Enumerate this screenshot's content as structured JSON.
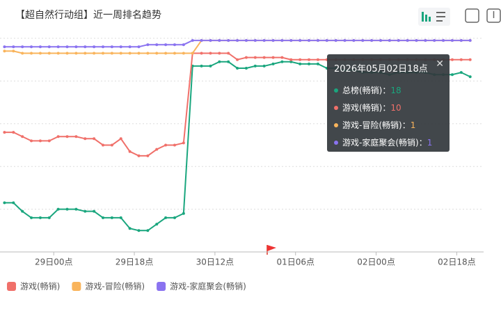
{
  "chart_data": {
    "type": "line",
    "title": "【超自然行动组】近一周排名趋势",
    "x": [
      -11,
      -9,
      -7,
      -5,
      -3,
      -1,
      1,
      3,
      5,
      7,
      9,
      11,
      13,
      15,
      17,
      19,
      21,
      23,
      25,
      27,
      29,
      31,
      33,
      35,
      37,
      39,
      41,
      43,
      45,
      47,
      49,
      51,
      53,
      55,
      57,
      59,
      61,
      63,
      65,
      67,
      69,
      71,
      73,
      75,
      77,
      79,
      81,
      83,
      85,
      87,
      89,
      91,
      93
    ],
    "xlim": [
      -12,
      96
    ],
    "xticks": [
      {
        "value": 0,
        "label": "29日00点"
      },
      {
        "value": 18,
        "label": "29日18点"
      },
      {
        "value": 36,
        "label": "30日12点"
      },
      {
        "value": 54,
        "label": "01日06点"
      },
      {
        "value": 72,
        "label": "02日00点"
      },
      {
        "value": 90,
        "label": "02日18点"
      }
    ],
    "ylim": [
      0,
      100
    ],
    "y_inverted": true,
    "yticks": [
      0,
      20,
      40,
      60,
      80,
      100
    ],
    "grid": true,
    "series": [
      {
        "name": "总榜(畅销)",
        "color": "#1aa67e",
        "in_legend": false,
        "values": [
          77,
          77,
          81,
          84,
          84,
          84,
          80,
          80,
          80,
          81,
          81,
          84,
          84,
          84,
          89,
          90,
          90,
          87,
          84,
          84,
          82,
          13,
          13,
          13,
          11,
          11,
          14,
          14,
          13,
          13,
          12,
          11,
          11,
          12,
          12,
          12,
          14,
          14,
          15,
          15,
          16,
          16,
          16,
          17,
          16,
          16,
          16,
          16,
          17,
          17,
          17,
          16,
          18
        ]
      },
      {
        "name": "游戏(畅销)",
        "color": "#f0706a",
        "in_legend": true,
        "values": [
          44,
          44,
          46,
          48,
          48,
          48,
          46,
          46,
          46,
          47,
          47,
          50,
          50,
          47,
          53,
          55,
          55,
          52,
          50,
          50,
          49,
          7,
          7,
          7,
          7,
          7,
          10,
          9,
          9,
          9,
          9,
          9,
          10,
          10,
          10,
          10,
          10,
          10,
          10,
          10,
          10,
          10,
          10,
          10,
          10,
          10,
          10,
          10,
          10,
          10,
          10,
          10,
          10
        ]
      },
      {
        "name": "游戏-冒险(畅销)",
        "color": "#f9b45c",
        "in_legend": true,
        "values": [
          6,
          6,
          7,
          7,
          7,
          7,
          7,
          7,
          7,
          7,
          7,
          7,
          7,
          7,
          7,
          7,
          7,
          7,
          7,
          7,
          7,
          7,
          1,
          1,
          1,
          1,
          1,
          1,
          1,
          1,
          1,
          1,
          1,
          1,
          1,
          1,
          1,
          1,
          1,
          1,
          1,
          1,
          1,
          1,
          1,
          1,
          1,
          1,
          1,
          1,
          1,
          1,
          1
        ]
      },
      {
        "name": "游戏-家庭聚会(畅销)",
        "color": "#8a73f0",
        "in_legend": true,
        "values": [
          4,
          4,
          4,
          4,
          4,
          4,
          4,
          4,
          4,
          4,
          4,
          4,
          4,
          4,
          4,
          4,
          3,
          3,
          3,
          3,
          3,
          1,
          1,
          1,
          1,
          1,
          1,
          1,
          1,
          1,
          1,
          1,
          1,
          1,
          1,
          1,
          1,
          1,
          1,
          1,
          1,
          1,
          1,
          1,
          1,
          1,
          1,
          1,
          1,
          1,
          1,
          1,
          1
        ]
      }
    ],
    "tooltip": {
      "title": "2026年05月02日18点",
      "values": [
        18,
        10,
        1,
        1
      ]
    }
  }
}
